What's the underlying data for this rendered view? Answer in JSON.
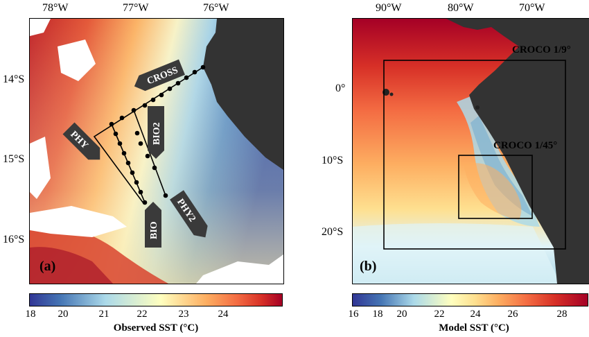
{
  "panel_a": {
    "label": "(a)",
    "lon_ticks": [
      "78°W",
      "77°W",
      "76°W"
    ],
    "lat_ticks": [
      "14°S",
      "15°S",
      "16°S"
    ],
    "arrows": [
      "CROSS",
      "BIO2",
      "PHY",
      "BIO",
      "PHY2"
    ],
    "colorbar": {
      "ticks": [
        "18",
        "20",
        "21",
        "22",
        "23",
        "24"
      ],
      "title": "Observed SST (°C)"
    }
  },
  "panel_b": {
    "label": "(b)",
    "lon_ticks": [
      "90°W",
      "80°W",
      "70°W"
    ],
    "lat_ticks": [
      "0°",
      "10°S",
      "20°S"
    ],
    "box_labels": [
      "CROCO 1/9°",
      "CROCO 1/45°"
    ],
    "colorbar": {
      "ticks": [
        "16",
        "18",
        "20",
        "22",
        "24",
        "26",
        "28"
      ],
      "title": "Model SST (°C)"
    }
  },
  "colors": {
    "land": "#333333",
    "cold": "#313695",
    "mid": "#ffffbf",
    "warm": "#a50026"
  }
}
